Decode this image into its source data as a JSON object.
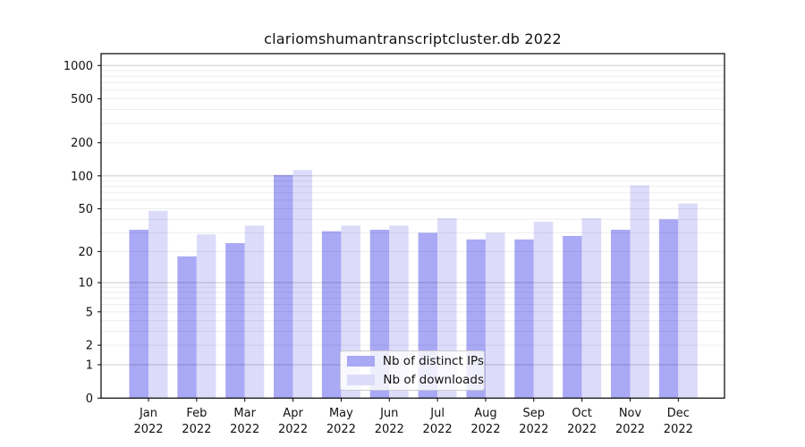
{
  "chart_data": {
    "type": "bar",
    "title": "clariomshumantranscriptcluster.db 2022",
    "categories": [
      "Jan",
      "Feb",
      "Mar",
      "Apr",
      "May",
      "Jun",
      "Jul",
      "Aug",
      "Sep",
      "Oct",
      "Nov",
      "Dec"
    ],
    "xlabel_year": "2022",
    "series": [
      {
        "name": "Nb of distinct IPs",
        "color": "#a9a9f6",
        "values": [
          32,
          18,
          24,
          102,
          31,
          32,
          30,
          26,
          26,
          28,
          32,
          40
        ]
      },
      {
        "name": "Nb of downloads",
        "color": "#dcdcfa",
        "values": [
          48,
          29,
          35,
          113,
          35,
          35,
          41,
          30,
          38,
          41,
          82,
          56
        ]
      }
    ],
    "yscale": "log1p",
    "ytick_values": [
      0,
      1,
      2,
      5,
      10,
      20,
      50,
      100,
      200,
      500,
      1000
    ],
    "ytick_labels": [
      "0",
      "1",
      "2",
      "5",
      "10",
      "20",
      "50",
      "100",
      "200",
      "500",
      "1000"
    ],
    "ylim": [
      0,
      1280
    ],
    "grid": "horizontal major and minor gridlines",
    "legend_position": "inside bottom, right of center",
    "xlabel": "",
    "ylabel": ""
  },
  "colors": {
    "distinct_ips_bar": "#a9a9f6",
    "downloads_bar": "#dcdcfa",
    "major_gridline": "#cccccc",
    "minor_gridline": "#ededed",
    "axis": "#000000",
    "background": "#ffffff",
    "legend_border": "#cccccc"
  }
}
